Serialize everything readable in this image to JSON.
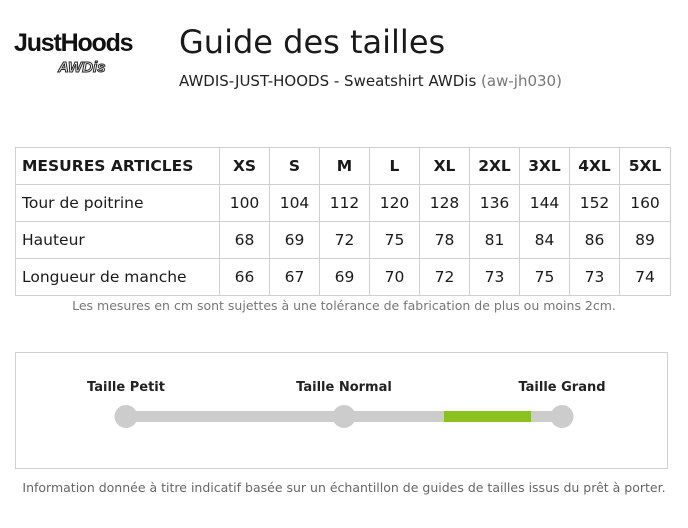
{
  "brand": {
    "logo_main": "JustHoods",
    "logo_sub": "AWDis"
  },
  "header": {
    "title": "Guide des tailles",
    "product": "AWDIS-JUST-HOODS - Sweatshirt AWDis",
    "product_code": "(aw-jh030)"
  },
  "size_table": {
    "header_label": "MESURES ARTICLES",
    "sizes": [
      "XS",
      "S",
      "M",
      "L",
      "XL",
      "2XL",
      "3XL",
      "4XL",
      "5XL"
    ],
    "rows": [
      {
        "label": "Tour de poitrine",
        "values": [
          "100",
          "104",
          "112",
          "120",
          "128",
          "136",
          "144",
          "152",
          "160"
        ]
      },
      {
        "label": "Hauteur",
        "values": [
          "68",
          "69",
          "72",
          "75",
          "78",
          "81",
          "84",
          "86",
          "89"
        ]
      },
      {
        "label": "Longueur de manche",
        "values": [
          "66",
          "67",
          "69",
          "70",
          "72",
          "73",
          "75",
          "73",
          "74"
        ]
      }
    ],
    "tolerance_note": "Les mesures en cm sont sujettes à une tolérance de fabrication de plus ou moins 2cm."
  },
  "fit": {
    "labels": [
      "Taille Petit",
      "Taille Normal",
      "Taille Grand"
    ],
    "indicator_start": 0.73,
    "indicator_end": 0.93,
    "accent_color": "#8cc21f",
    "track_color": "#cccccc"
  },
  "footnote": "Information donnée à titre indicatif basée sur un échantillon de guides de tailles issus du prêt à porter."
}
